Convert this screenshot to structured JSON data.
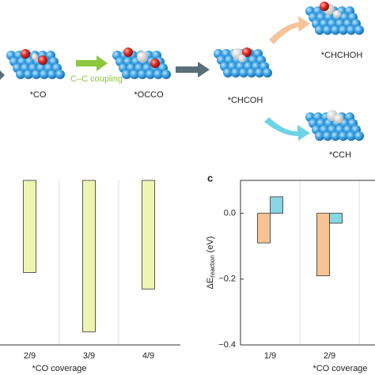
{
  "diagram": {
    "arrow_label": "C–C coupling",
    "species": [
      "*CO",
      "*OCCO",
      "*CHCOH",
      "*CHCHOH",
      "*CCH"
    ]
  },
  "chart_data": [
    {
      "type": "bar",
      "categories": [
        "2/9",
        "3/9",
        "4/9"
      ],
      "values": [
        -0.28,
        -0.46,
        -0.33
      ],
      "color": "#eef5b0",
      "ylim": [
        -0.5,
        0
      ],
      "x_label": "*CO coverage",
      "grid": true
    },
    {
      "type": "bar",
      "panel_label": "c",
      "categories": [
        "1/9",
        "2/9"
      ],
      "series": [
        {
          "color": "#f7c394",
          "values": [
            -0.09,
            -0.19
          ]
        },
        {
          "color": "#86d6e3",
          "values": [
            0.05,
            -0.03
          ]
        }
      ],
      "ylim": [
        -0.4,
        0.1
      ],
      "yticks": [
        {
          "value": 0,
          "label": "0.0"
        },
        {
          "value": -0.2,
          "label": "−0.2"
        },
        {
          "value": -0.4,
          "label": "−0.4"
        }
      ],
      "y_label": {
        "symbol": "ΔE",
        "subscript": "reaction",
        "unit": "(eV)"
      },
      "x_label": "*CO coverage",
      "grid": true
    }
  ]
}
